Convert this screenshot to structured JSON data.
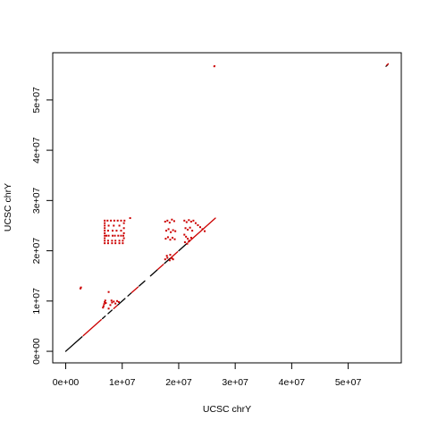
{
  "chart_data": {
    "type": "scatter",
    "xlabel": "UCSC chrY",
    "ylabel": "UCSC chrY",
    "xlim": [
      -2300000,
      59400000
    ],
    "ylim": [
      -2300000,
      59400000
    ],
    "x_ticks": [
      0,
      10000000,
      20000000,
      30000000,
      40000000,
      50000000
    ],
    "x_tick_labels": [
      "0e+00",
      "1e+07",
      "2e+07",
      "3e+07",
      "4e+07",
      "5e+07"
    ],
    "y_ticks": [
      0,
      10000000,
      20000000,
      30000000,
      40000000,
      50000000
    ],
    "y_tick_labels": [
      "0e+00",
      "1e+07",
      "2e+07",
      "3e+07",
      "4e+07",
      "5e+07"
    ],
    "grid": false,
    "colors": {
      "forward": "#000000",
      "reverse": "#cc0000"
    },
    "series": [
      {
        "strand": "forward",
        "segments": [
          [
            0,
            0,
            2900000,
            2900000
          ],
          [
            6500000,
            6500000,
            7000000,
            7000000
          ],
          [
            7500000,
            7500000,
            8200000,
            8200000
          ],
          [
            9200000,
            9200000,
            10500000,
            10500000
          ],
          [
            11000000,
            11000000,
            11600000,
            11600000
          ],
          [
            13000000,
            13000000,
            14000000,
            14000000
          ],
          [
            15000000,
            15000000,
            16200000,
            16200000
          ],
          [
            17500000,
            17500000,
            18500000,
            18500000
          ],
          [
            20000000,
            20000000,
            21500000,
            21500000
          ],
          [
            56700000,
            56700000,
            57000000,
            57000000
          ]
        ]
      },
      {
        "strand": "reverse",
        "segments": [
          [
            3100000,
            3100000,
            6300000,
            6300000
          ],
          [
            8500000,
            8500000,
            9100000,
            9100000
          ],
          [
            11700000,
            11700000,
            12800000,
            12800000
          ],
          [
            16300000,
            16300000,
            17300000,
            17300000
          ],
          [
            18600000,
            18600000,
            19800000,
            19800000
          ],
          [
            21700000,
            21700000,
            26500000,
            26500000
          ],
          [
            26300000,
            56700000,
            26400000,
            56800000
          ],
          [
            56800000,
            56900000,
            57100000,
            57200000
          ]
        ]
      }
    ],
    "reverse_points": [
      [
        6700000,
        9000000
      ],
      [
        6800000,
        9400000
      ],
      [
        6900000,
        9800000
      ],
      [
        7000000,
        10100000
      ],
      [
        7100000,
        9600000
      ],
      [
        6600000,
        8700000
      ],
      [
        7900000,
        9200000
      ],
      [
        8200000,
        9700000
      ],
      [
        8500000,
        9900000
      ],
      [
        8800000,
        9500000
      ],
      [
        9100000,
        10000000
      ],
      [
        9400000,
        9800000
      ],
      [
        7600000,
        8500000
      ],
      [
        7600000,
        11800000
      ],
      [
        8100000,
        10100000
      ],
      [
        6900000,
        23000000
      ],
      [
        7200000,
        23000000
      ],
      [
        7600000,
        23000000
      ],
      [
        8300000,
        23000000
      ],
      [
        8700000,
        23000000
      ],
      [
        9300000,
        23000000
      ],
      [
        9800000,
        23000000
      ],
      [
        10200000,
        23000000
      ],
      [
        6900000,
        22000000
      ],
      [
        7500000,
        22000000
      ],
      [
        8200000,
        22000000
      ],
      [
        8800000,
        22000000
      ],
      [
        9500000,
        22000000
      ],
      [
        10100000,
        22000000
      ],
      [
        6900000,
        21500000
      ],
      [
        7500000,
        21500000
      ],
      [
        8200000,
        21500000
      ],
      [
        8800000,
        21500000
      ],
      [
        9500000,
        21500000
      ],
      [
        10100000,
        21500000
      ],
      [
        6900000,
        24000000
      ],
      [
        7500000,
        24000000
      ],
      [
        8300000,
        24000000
      ],
      [
        9000000,
        24000000
      ],
      [
        9800000,
        24000000
      ],
      [
        6900000,
        25000000
      ],
      [
        7600000,
        25000000
      ],
      [
        8500000,
        25000000
      ],
      [
        9500000,
        25000000
      ],
      [
        6900000,
        26000000
      ],
      [
        7400000,
        26000000
      ],
      [
        8000000,
        26000000
      ],
      [
        8600000,
        26000000
      ],
      [
        9200000,
        26000000
      ],
      [
        9800000,
        26000000
      ],
      [
        10400000,
        26000000
      ],
      [
        11400000,
        26500000
      ],
      [
        6900000,
        22500000
      ],
      [
        6900000,
        23500000
      ],
      [
        6900000,
        24500000
      ],
      [
        6900000,
        25500000
      ],
      [
        10300000,
        22500000
      ],
      [
        10300000,
        23500000
      ],
      [
        10300000,
        24500000
      ],
      [
        10300000,
        25500000
      ],
      [
        17600000,
        25800000
      ],
      [
        18000000,
        26000000
      ],
      [
        18400000,
        25600000
      ],
      [
        18800000,
        26200000
      ],
      [
        19200000,
        25900000
      ],
      [
        17800000,
        24000000
      ],
      [
        18200000,
        24300000
      ],
      [
        18600000,
        23700000
      ],
      [
        19000000,
        24100000
      ],
      [
        19400000,
        23900000
      ],
      [
        17700000,
        22400000
      ],
      [
        18100000,
        22700000
      ],
      [
        18500000,
        22200000
      ],
      [
        18900000,
        22600000
      ],
      [
        19300000,
        22300000
      ],
      [
        17600000,
        18300000
      ],
      [
        18000000,
        18600000
      ],
      [
        18400000,
        18100000
      ],
      [
        18800000,
        18500000
      ],
      [
        19000000,
        18300000
      ],
      [
        17900000,
        19000000
      ],
      [
        18500000,
        19200000
      ],
      [
        21000000,
        26000000
      ],
      [
        21400000,
        25700000
      ],
      [
        21800000,
        26100000
      ],
      [
        22200000,
        25800000
      ],
      [
        22600000,
        26000000
      ],
      [
        23000000,
        25500000
      ],
      [
        23400000,
        25100000
      ],
      [
        23800000,
        24700000
      ],
      [
        24200000,
        24300000
      ],
      [
        24600000,
        23900000
      ],
      [
        21200000,
        24500000
      ],
      [
        21600000,
        24200000
      ],
      [
        22000000,
        24600000
      ],
      [
        22400000,
        24000000
      ],
      [
        21000000,
        23200000
      ],
      [
        21300000,
        22800000
      ],
      [
        21600000,
        22400000
      ],
      [
        21900000,
        22000000
      ],
      [
        22200000,
        22600000
      ],
      [
        21100000,
        21700000
      ],
      [
        21500000,
        21400000
      ],
      [
        21800000,
        21900000
      ],
      [
        2600000,
        12500000
      ],
      [
        2700000,
        12700000
      ],
      [
        26300000,
        56700000
      ]
    ]
  }
}
